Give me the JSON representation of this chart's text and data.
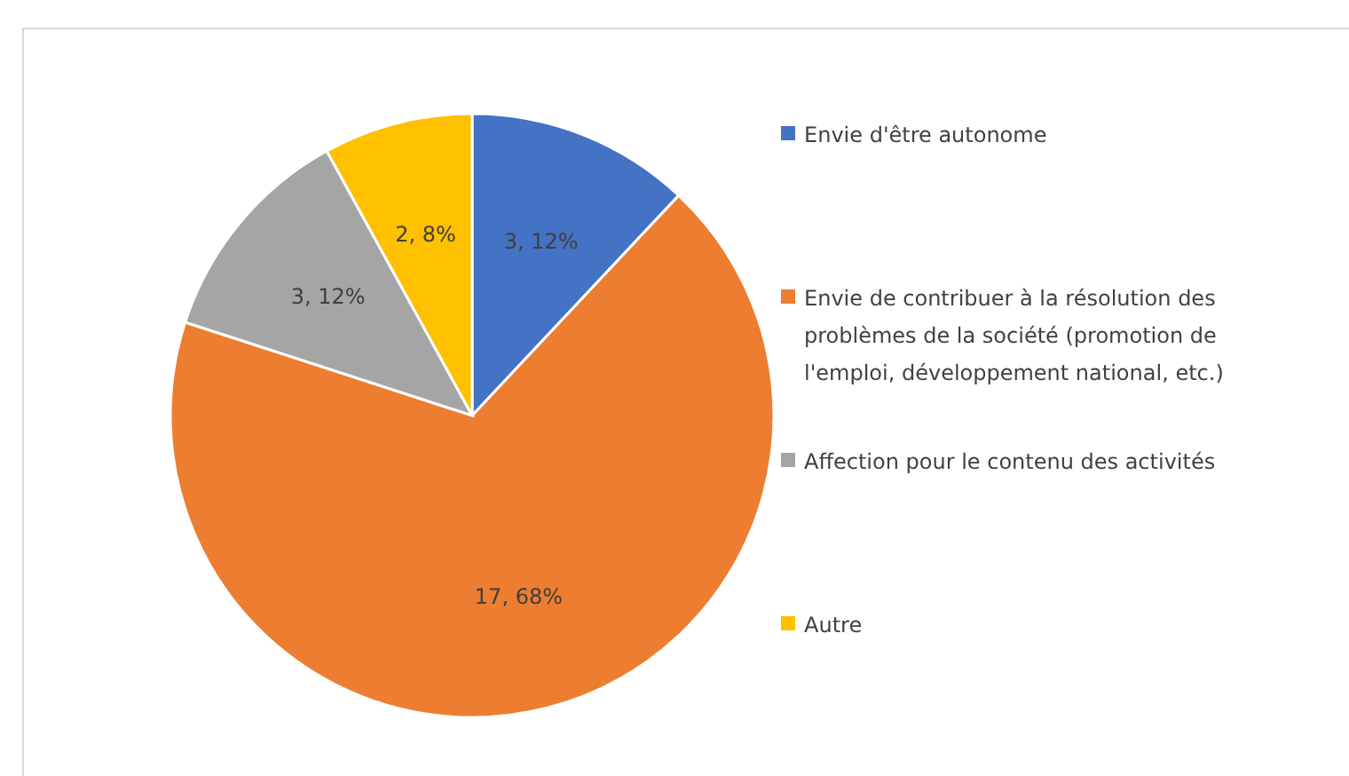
{
  "chart_data": {
    "type": "pie",
    "categories": [
      "Envie d'être autonome",
      "Envie de contribuer à la résolution des problèmes de la société (promotion de l'emploi, développement national, etc.)",
      "Affection pour le contenu des activités",
      "Autre"
    ],
    "values": [
      3,
      17,
      3,
      2
    ],
    "colors": [
      "#4472c4",
      "#ed7d31",
      "#a5a5a5",
      "#ffc000"
    ],
    "value_labels": [
      "3, 12%",
      "17, 68%",
      "3, 12%",
      "2, 8%"
    ],
    "legend": "right"
  }
}
